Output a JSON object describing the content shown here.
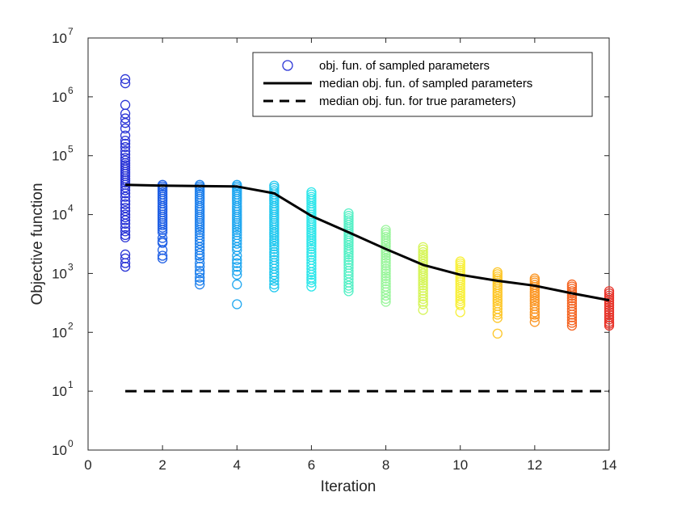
{
  "chart_data": {
    "type": "scatter",
    "xlabel": "Iteration",
    "ylabel": "Objective function",
    "xlim": [
      0,
      14
    ],
    "ylim": [
      1,
      10000000
    ],
    "yscale": "log",
    "x_ticks": [
      0,
      2,
      4,
      6,
      8,
      10,
      12,
      14
    ],
    "y_tick_exponents": [
      0,
      1,
      2,
      3,
      4,
      5,
      6,
      7
    ],
    "y_tick_base": "10",
    "grid": false,
    "legend_position": "top-right",
    "series": [
      {
        "name": "obj. fun. of sampled parameters",
        "kind": "scatter",
        "marker": "open-circle",
        "colormap": "jet",
        "groups": [
          {
            "x": 1,
            "color": "#2b35d6",
            "values": [
              2000000,
              1700000,
              730000,
              520000,
              430000,
              360000,
              290000,
              220000,
              180000,
              160000,
              140000,
              120000,
              105000,
              92000,
              83000,
              75000,
              69000,
              63000,
              58000,
              53000,
              49000,
              45000,
              41000,
              38000,
              35000,
              32000,
              29000,
              26000,
              23000,
              20000,
              17000,
              15000,
              13000,
              11500,
              10000,
              9000,
              8000,
              7000,
              6000,
              5200,
              4500,
              4100,
              2100,
              1800,
              1500,
              1300
            ]
          },
          {
            "x": 2,
            "color": "#1f5fe5",
            "values": [
              32000,
              30000,
              28000,
              26000,
              24000,
              22000,
              20000,
              18500,
              17000,
              15500,
              14000,
              13000,
              12000,
              11000,
              10000,
              9200,
              8500,
              7800,
              7200,
              6600,
              6000,
              5500,
              5000,
              4000,
              3500,
              3300,
              2500,
              2000,
              1800
            ]
          },
          {
            "x": 3,
            "color": "#1f80ec",
            "values": [
              32000,
              30000,
              28000,
              26000,
              24000,
              22000,
              20000,
              18500,
              17000,
              15500,
              14000,
              13000,
              12000,
              11000,
              10000,
              9200,
              8500,
              7800,
              7200,
              6600,
              6000,
              5500,
              5000,
              4500,
              4000,
              3600,
              3200,
              2800,
              2500,
              2200,
              2000,
              1800,
              1500,
              1300,
              1100,
              1000,
              850,
              750,
              650
            ]
          },
          {
            "x": 4,
            "color": "#1fa7f0",
            "values": [
              32000,
              30000,
              28000,
              26000,
              24000,
              22000,
              20000,
              18500,
              17000,
              15500,
              14000,
              13000,
              12000,
              11000,
              10000,
              9200,
              8500,
              7800,
              7200,
              6600,
              6000,
              5500,
              5000,
              4500,
              4000,
              3600,
              3200,
              2800,
              2500,
              2000,
              1700,
              1500,
              1300,
              1100,
              950,
              650,
              300
            ]
          },
          {
            "x": 5,
            "color": "#21c8ef",
            "values": [
              31000,
              28500,
              26000,
              24000,
              22000,
              20000,
              18500,
              17000,
              15500,
              14000,
              13000,
              12000,
              11000,
              10000,
              9200,
              8500,
              7800,
              7200,
              6600,
              6000,
              5500,
              5000,
              4600,
              4200,
              3800,
              3500,
              3200,
              2900,
              2600,
              2300,
              2100,
              1900,
              1700,
              1500,
              1350,
              1200,
              1050,
              950,
              850,
              750,
              650,
              580
            ]
          },
          {
            "x": 6,
            "color": "#2ee6ea",
            "values": [
              24000,
              22000,
              20000,
              18500,
              17000,
              15500,
              14000,
              13000,
              12000,
              11000,
              10000,
              9200,
              8500,
              7800,
              7200,
              6600,
              6000,
              5500,
              5000,
              4600,
              4200,
              3800,
              3500,
              3200,
              2900,
              2600,
              2300,
              2100,
              1900,
              1700,
              1500,
              1350,
              1200,
              1050,
              950,
              850,
              780,
              700,
              600
            ]
          },
          {
            "x": 7,
            "color": "#56f0c6",
            "values": [
              10500,
              9500,
              8700,
              8000,
              7300,
              6700,
              6100,
              5600,
              5100,
              4700,
              4300,
              3900,
              3600,
              3300,
              3000,
              2700,
              2500,
              2300,
              2100,
              1900,
              1700,
              1550,
              1400,
              1250,
              1100,
              1000,
              900,
              800,
              700,
              620,
              560,
              500
            ]
          },
          {
            "x": 8,
            "color": "#9af59c",
            "values": [
              5500,
              5000,
              4600,
              4200,
              3800,
              3500,
              3200,
              2900,
              2600,
              2400,
              2200,
              2000,
              1800,
              1650,
              1500,
              1350,
              1200,
              1100,
              1000,
              900,
              820,
              740,
              670,
              600,
              540,
              480,
              420,
              370,
              330
            ]
          },
          {
            "x": 9,
            "color": "#d6f55a",
            "values": [
              2800,
              2550,
              2300,
              2100,
              1900,
              1750,
              1600,
              1450,
              1300,
              1200,
              1100,
              1000,
              920,
              840,
              760,
              690,
              630,
              570,
              510,
              460,
              410,
              370,
              330,
              300,
              240
            ]
          },
          {
            "x": 10,
            "color": "#f8f03c",
            "values": [
              1600,
              1480,
              1370,
              1260,
              1160,
              1070,
              990,
              910,
              840,
              770,
              710,
              650,
              590,
              540,
              490,
              450,
              410,
              370,
              340,
              310,
              290,
              220
            ]
          },
          {
            "x": 11,
            "color": "#fdc72b",
            "values": [
              1050,
              970,
              890,
              820,
              760,
              700,
              640,
              590,
              540,
              490,
              450,
              410,
              370,
              340,
              310,
              280,
              250,
              220,
              200,
              175,
              95
            ]
          },
          {
            "x": 12,
            "color": "#fb9624",
            "values": [
              820,
              760,
              700,
              640,
              590,
              540,
              490,
              450,
              410,
              370,
              340,
              310,
              280,
              250,
              220,
              200,
              180,
              150
            ]
          },
          {
            "x": 13,
            "color": "#f46422",
            "values": [
              650,
              600,
              550,
              500,
              460,
              420,
              380,
              345,
              310,
              280,
              250,
              225,
              200,
              180,
              160,
              145,
              130
            ]
          },
          {
            "x": 14,
            "color": "#e8342a",
            "values": [
              500,
              460,
              420,
              385,
              350,
              320,
              290,
              265,
              240,
              220,
              200,
              180,
              165,
              150,
              140,
              130
            ]
          }
        ]
      },
      {
        "name": "median obj. fun. of sampled parameters",
        "kind": "line",
        "style": "solid",
        "color": "#000000",
        "x": [
          1,
          2,
          3,
          4,
          5,
          6,
          7,
          8,
          9,
          10,
          11,
          12,
          13,
          14
        ],
        "values": [
          32000,
          31000,
          30500,
          30000,
          23000,
          9500,
          5000,
          2600,
          1400,
          950,
          750,
          620,
          460,
          350
        ]
      },
      {
        "name": "median obj. fun. for true parameters)",
        "kind": "line",
        "style": "dashed",
        "color": "#000000",
        "x": [
          1,
          14
        ],
        "values": [
          10,
          10
        ]
      }
    ]
  }
}
